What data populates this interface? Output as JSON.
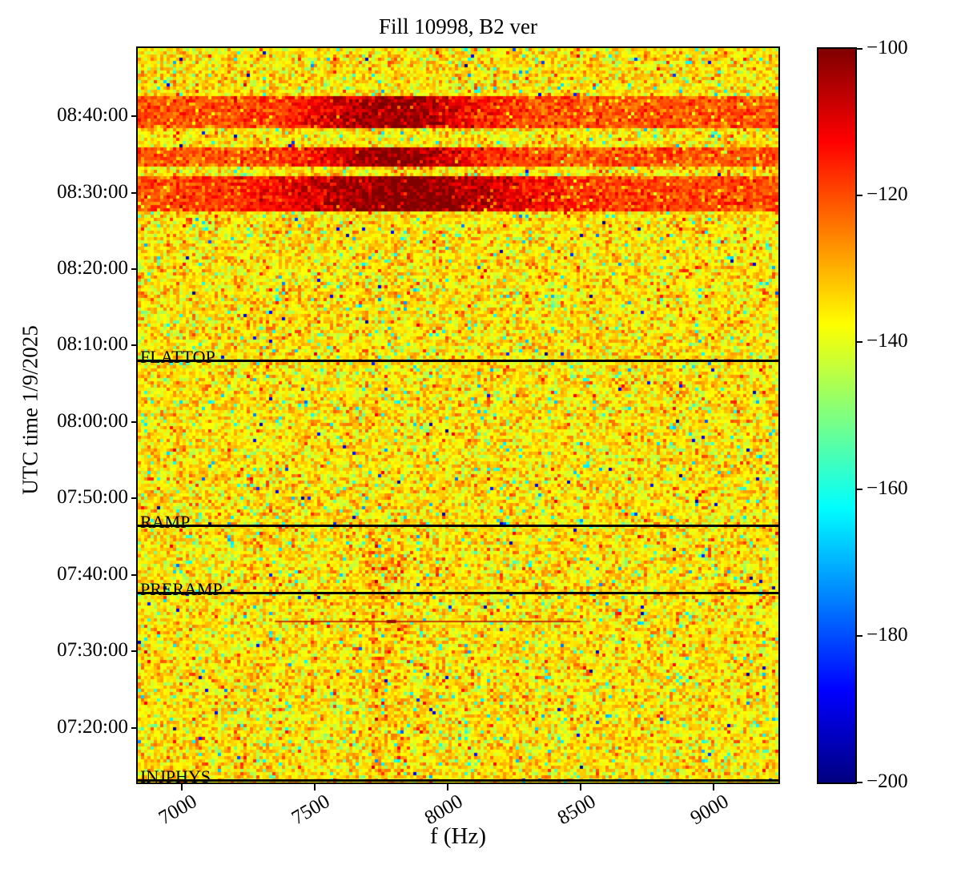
{
  "chart_data": {
    "type": "heatmap",
    "title": "Fill 10998, B2 ver",
    "xlabel": "f (Hz)",
    "ylabel": "UTC time 1/9/2025",
    "colormap": "jet",
    "xlim": [
      6834,
      9244
    ],
    "x_ticks": [
      "7000",
      "7500",
      "8000",
      "8500",
      "9000"
    ],
    "time_top": "08:48:55",
    "time_bottom": "07:12:50",
    "y_ticks": [
      "08:40:00",
      "08:30:00",
      "08:20:00",
      "08:10:00",
      "08:00:00",
      "07:50:00",
      "07:40:00",
      "07:30:00",
      "07:20:00"
    ],
    "colorbar": {
      "vmin": -200,
      "vmax": -100,
      "tick_values": [
        -100,
        -120,
        -140,
        -160,
        -180,
        -200
      ],
      "tick_labels": [
        "−100",
        "−120",
        "−140",
        "−160",
        "−180",
        "−200"
      ]
    },
    "noise_floor_db": -136,
    "noise_sigma_db": 5.5,
    "bands": [
      {
        "t_top": "08:42:30",
        "t_bottom": "08:38:20",
        "base_db": -121,
        "peak_amp_db": 19,
        "peak_freq_hz": 7790,
        "peak_width_hz": 330
      },
      {
        "t_top": "08:36:05",
        "t_bottom": "08:33:35",
        "base_db": -121,
        "peak_amp_db": 20,
        "peak_freq_hz": 7790,
        "peak_width_hz": 300
      },
      {
        "t_top": "08:32:15",
        "t_bottom": "08:27:45",
        "base_db": -120,
        "peak_amp_db": 20,
        "peak_freq_hz": 7850,
        "peak_width_hz": 480
      }
    ],
    "event_lines": [
      {
        "label": "FLATTOP",
        "time": "08:08:05"
      },
      {
        "label": "RAMP",
        "time": "07:46:30"
      },
      {
        "label": "PRERAMP",
        "time": "07:37:40"
      },
      {
        "label": "INJPHYS",
        "time": "07:13:05"
      }
    ],
    "vertical_stripes": [
      {
        "f_min": 7700,
        "f_max": 7830,
        "boost_db": 7,
        "density": 0.55,
        "t_below": "07:46:30"
      },
      {
        "f_min": 7900,
        "f_max": 7935,
        "boost_db": 5,
        "density": 0.4,
        "t_below": "07:46:30"
      }
    ],
    "horizontal_line": {
      "time": "07:34:00",
      "f_min": 7350,
      "f_max": 8500,
      "db": -118
    }
  }
}
